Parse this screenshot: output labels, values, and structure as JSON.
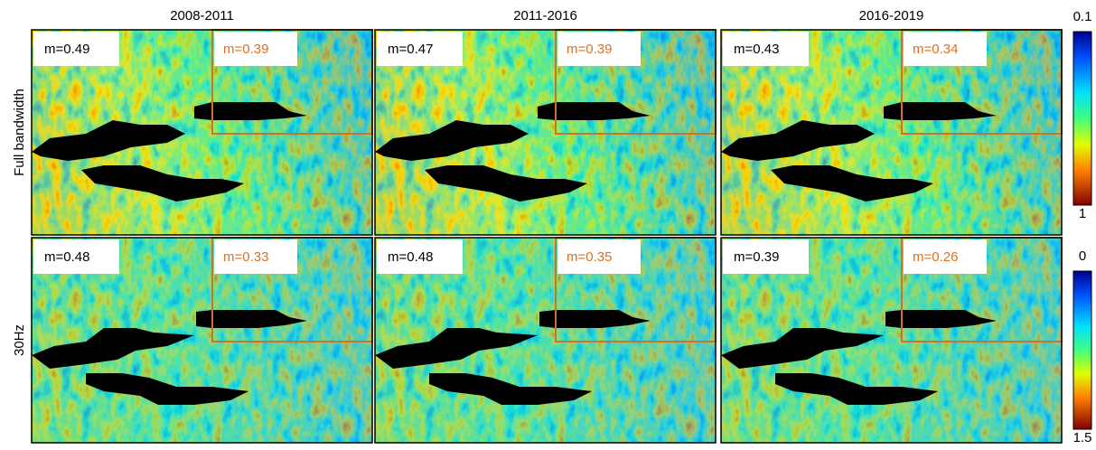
{
  "columns": [
    "2008-2011",
    "2011-2016",
    "2016-2019"
  ],
  "rows": [
    {
      "label": "Full bandwidth",
      "panels": [
        {
          "m": "m=0.49",
          "inset": "m=0.39"
        },
        {
          "m": "m=0.47",
          "inset": "m=0.39"
        },
        {
          "m": "m=0.43",
          "inset": "m=0.34"
        }
      ],
      "colorbar": {
        "top": "0.1",
        "bottom": "1"
      }
    },
    {
      "label": "30Hz",
      "panels": [
        {
          "m": "m=0.48",
          "inset": "m=0.33"
        },
        {
          "m": "m=0.48",
          "inset": "m=0.35"
        },
        {
          "m": "m=0.39",
          "inset": "m=0.26"
        }
      ],
      "colorbar": {
        "top": "0",
        "bottom": "1.5"
      }
    }
  ]
}
